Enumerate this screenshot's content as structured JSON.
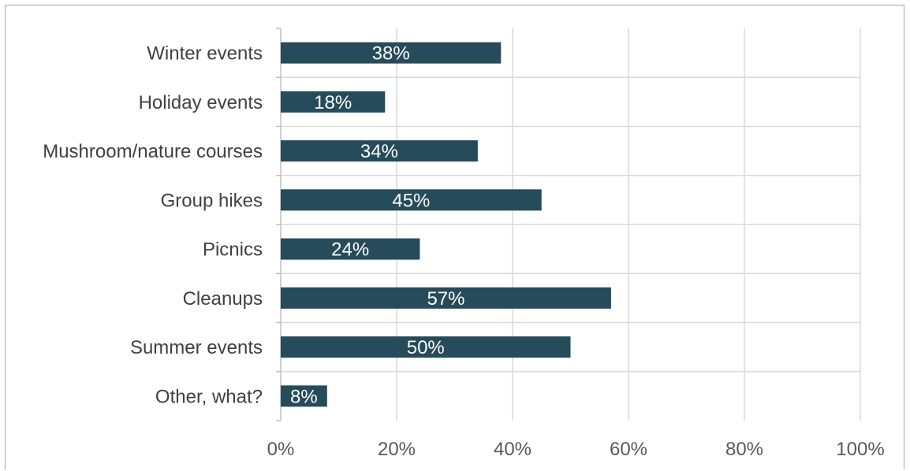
{
  "chart_data": {
    "type": "bar",
    "orientation": "horizontal",
    "categories": [
      "Winter events",
      "Holiday events",
      "Mushroom/nature courses",
      "Group hikes",
      "Picnics",
      "Cleanups",
      "Summer events",
      "Other, what?"
    ],
    "values": [
      38,
      18,
      34,
      45,
      24,
      57,
      50,
      8
    ],
    "data_labels": [
      "38%",
      "18%",
      "34%",
      "45%",
      "24%",
      "57%",
      "50%",
      "8%"
    ],
    "xlim": [
      0,
      100
    ],
    "x_ticks": [
      0,
      20,
      40,
      60,
      80,
      100
    ],
    "x_tick_labels": [
      "0%",
      "20%",
      "40%",
      "60%",
      "80%",
      "100%"
    ],
    "grid": true,
    "legend": "none",
    "bar_color": "#264b5a",
    "grid_color": "#d9d9d9"
  }
}
